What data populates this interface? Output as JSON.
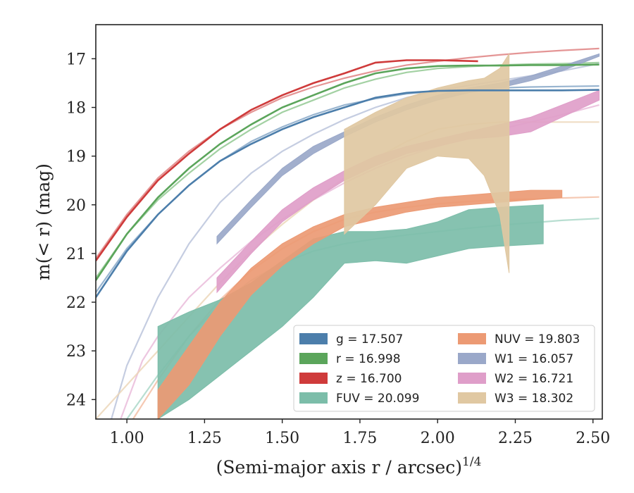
{
  "chart_data": {
    "type": "line",
    "xlabel": "(Semi-major axis r / arcsec)",
    "xlabel_exponent": "1/4",
    "ylabel": "m(< r) (mag)",
    "xlim": [
      0.9,
      2.53
    ],
    "ylim": [
      24.4,
      16.3
    ],
    "y_inverted": true,
    "grid": false,
    "x_ticks": [
      1.0,
      1.25,
      1.5,
      1.75,
      2.0,
      2.25,
      2.5
    ],
    "x_tick_labels": [
      "1.00",
      "1.25",
      "1.50",
      "1.75",
      "2.00",
      "2.25",
      "2.50"
    ],
    "y_ticks": [
      17,
      18,
      19,
      20,
      21,
      22,
      23,
      24
    ],
    "y_tick_labels": [
      "17",
      "18",
      "19",
      "20",
      "21",
      "22",
      "23",
      "24"
    ],
    "legend_position": "lower-right",
    "legend": [
      {
        "label": "g = 17.507",
        "color": "#4c7eab"
      },
      {
        "label": "r = 16.998",
        "color": "#5ba55b"
      },
      {
        "label": "z = 16.700",
        "color": "#cf3b3b"
      },
      {
        "label": "FUV = 20.099",
        "color": "#7cbda9"
      },
      {
        "label": "NUV = 19.803",
        "color": "#ec9a74"
      },
      {
        "label": "W1 = 16.057",
        "color": "#9aa8c9"
      },
      {
        "label": "W2 = 16.721",
        "color": "#df9ec9"
      },
      {
        "label": "W3 = 18.302",
        "color": "#e0c8a2"
      }
    ],
    "series": [
      {
        "name": "g = 17.507",
        "kind": "line",
        "color": "#4c7eab",
        "x": [
          0.9,
          1.0,
          1.1,
          1.2,
          1.3,
          1.4,
          1.5,
          1.6,
          1.7,
          1.8,
          1.9,
          2.0,
          2.1,
          2.2,
          2.3,
          2.4,
          2.52
        ],
        "y": [
          21.9,
          20.95,
          20.2,
          19.6,
          19.1,
          18.75,
          18.45,
          18.2,
          18.0,
          17.8,
          17.7,
          17.66,
          17.65,
          17.65,
          17.65,
          17.65,
          17.64
        ]
      },
      {
        "name": "r = 16.998",
        "kind": "line",
        "color": "#5ba55b",
        "x": [
          0.9,
          1.0,
          1.1,
          1.2,
          1.3,
          1.4,
          1.5,
          1.6,
          1.7,
          1.8,
          1.9,
          2.0,
          2.1,
          2.2,
          2.3,
          2.4,
          2.52
        ],
        "y": [
          21.55,
          20.6,
          19.85,
          19.25,
          18.75,
          18.35,
          18.0,
          17.75,
          17.5,
          17.3,
          17.2,
          17.15,
          17.14,
          17.14,
          17.13,
          17.13,
          17.12
        ]
      },
      {
        "name": "z = 16.700",
        "kind": "line",
        "color": "#cf3b3b",
        "x": [
          0.9,
          1.0,
          1.1,
          1.2,
          1.3,
          1.4,
          1.5,
          1.6,
          1.7,
          1.8,
          1.9,
          2.0,
          2.13
        ],
        "y": [
          21.15,
          20.25,
          19.5,
          18.95,
          18.45,
          18.05,
          17.75,
          17.5,
          17.3,
          17.08,
          17.03,
          17.03,
          17.05
        ]
      },
      {
        "name": "FUV = 20.099",
        "kind": "band",
        "color": "#7cbda9",
        "x": [
          1.1,
          1.2,
          1.3,
          1.4,
          1.5,
          1.6,
          1.7,
          1.8,
          1.9,
          2.0,
          2.1,
          2.2,
          2.34
        ],
        "y_low": [
          24.4,
          24.0,
          23.5,
          23.0,
          22.5,
          21.9,
          21.2,
          21.15,
          21.2,
          21.05,
          20.9,
          20.85,
          20.8
        ],
        "y_high": [
          22.5,
          22.2,
          21.95,
          21.6,
          21.15,
          20.7,
          20.55,
          20.55,
          20.5,
          20.35,
          20.1,
          20.05,
          20.0
        ]
      },
      {
        "name": "NUV = 19.803",
        "kind": "band",
        "color": "#ec9a74",
        "x": [
          1.1,
          1.2,
          1.3,
          1.4,
          1.5,
          1.6,
          1.7,
          1.8,
          1.9,
          2.0,
          2.1,
          2.2,
          2.3,
          2.4
        ],
        "y_low": [
          24.4,
          23.7,
          22.7,
          21.85,
          21.25,
          20.8,
          20.45,
          20.3,
          20.15,
          20.05,
          20.0,
          19.95,
          19.9,
          19.85
        ],
        "y_high": [
          23.8,
          22.9,
          22.0,
          21.3,
          20.8,
          20.45,
          20.2,
          20.05,
          19.95,
          19.85,
          19.8,
          19.75,
          19.7,
          19.7
        ]
      },
      {
        "name": "W1 = 16.057",
        "kind": "band",
        "color": "#9aa8c9",
        "x": [
          1.29,
          1.4,
          1.5,
          1.6,
          1.7,
          1.8,
          1.9,
          2.0,
          2.1,
          2.2,
          2.3,
          2.4,
          2.52
        ],
        "y_low": [
          20.8,
          20.05,
          19.4,
          18.95,
          18.6,
          18.3,
          18.05,
          17.85,
          17.7,
          17.6,
          17.45,
          17.25,
          16.95
        ],
        "y_high": [
          20.65,
          19.9,
          19.25,
          18.8,
          18.5,
          18.2,
          17.95,
          17.75,
          17.6,
          17.5,
          17.35,
          17.15,
          16.9
        ]
      },
      {
        "name": "W2 = 16.721",
        "kind": "band",
        "color": "#df9ec9",
        "x": [
          1.29,
          1.4,
          1.5,
          1.6,
          1.7,
          1.8,
          1.9,
          2.0,
          2.1,
          2.2,
          2.3,
          2.4,
          2.52
        ],
        "y_low": [
          21.8,
          21.0,
          20.35,
          19.9,
          19.5,
          19.2,
          18.95,
          18.8,
          18.65,
          18.6,
          18.5,
          18.2,
          17.85
        ],
        "y_high": [
          21.5,
          20.75,
          20.1,
          19.65,
          19.3,
          19.0,
          18.8,
          18.65,
          18.5,
          18.35,
          18.2,
          17.95,
          17.65
        ]
      },
      {
        "name": "W3 = 18.302",
        "kind": "band",
        "color": "#e0c8a2",
        "x": [
          1.7,
          1.8,
          1.9,
          2.0,
          2.1,
          2.15,
          2.2,
          2.23
        ],
        "y_low": [
          20.6,
          20.0,
          19.25,
          19.0,
          19.05,
          19.4,
          20.2,
          21.4
        ],
        "y_high": [
          18.45,
          18.1,
          17.8,
          17.6,
          17.45,
          17.4,
          17.2,
          16.9
        ]
      }
    ],
    "model_curves": [
      {
        "color": "#dd7b7b",
        "x": [
          0.9,
          1.0,
          1.1,
          1.2,
          1.3,
          1.4,
          1.5,
          1.6,
          1.7,
          1.8,
          1.9,
          2.0,
          2.1,
          2.2,
          2.3,
          2.4,
          2.52
        ],
        "y": [
          21.1,
          20.2,
          19.45,
          18.9,
          18.45,
          18.1,
          17.8,
          17.58,
          17.4,
          17.25,
          17.13,
          17.05,
          16.98,
          16.92,
          16.87,
          16.83,
          16.79
        ]
      },
      {
        "color": "#8cc58c",
        "x": [
          0.9,
          1.0,
          1.1,
          1.2,
          1.3,
          1.4,
          1.5,
          1.6,
          1.7,
          1.8,
          1.9,
          2.0,
          2.1,
          2.2,
          2.3,
          2.4,
          2.52
        ],
        "y": [
          21.5,
          20.6,
          19.9,
          19.35,
          18.85,
          18.45,
          18.1,
          17.85,
          17.6,
          17.42,
          17.28,
          17.2,
          17.16,
          17.13,
          17.11,
          17.1,
          17.08
        ]
      },
      {
        "color": "#7fa3c4",
        "x": [
          0.9,
          1.0,
          1.1,
          1.2,
          1.3,
          1.4,
          1.5,
          1.6,
          1.7,
          1.8,
          1.9,
          2.0,
          2.1,
          2.2,
          2.3,
          2.4,
          2.52
        ],
        "y": [
          21.8,
          20.9,
          20.2,
          19.6,
          19.1,
          18.7,
          18.4,
          18.15,
          17.95,
          17.82,
          17.72,
          17.66,
          17.62,
          17.6,
          17.58,
          17.57,
          17.56
        ]
      },
      {
        "color": "#b7c1d9",
        "x": [
          0.95,
          1.0,
          1.1,
          1.2,
          1.3,
          1.4,
          1.5,
          1.6,
          1.7,
          1.8,
          1.9,
          2.0,
          2.1,
          2.2,
          2.3,
          2.4,
          2.52
        ],
        "y": [
          24.4,
          23.3,
          21.9,
          20.8,
          19.95,
          19.35,
          18.9,
          18.55,
          18.25,
          18.0,
          17.8,
          17.65,
          17.55,
          17.45,
          17.35,
          17.25,
          17.1
        ]
      },
      {
        "color": "#e8b8d8",
        "x": [
          0.98,
          1.05,
          1.1,
          1.2,
          1.3,
          1.4,
          1.5,
          1.6,
          1.7,
          1.8,
          1.9,
          2.0,
          2.1,
          2.2,
          2.3,
          2.4,
          2.52
        ],
        "y": [
          24.4,
          23.2,
          22.7,
          21.9,
          21.3,
          20.75,
          20.3,
          19.9,
          19.55,
          19.25,
          19.0,
          18.8,
          18.6,
          18.45,
          18.3,
          18.15,
          17.95
        ]
      },
      {
        "color": "#ebd5b5",
        "x": [
          0.9,
          1.0,
          1.1,
          1.2,
          1.3,
          1.4,
          1.5,
          1.6,
          1.7,
          1.8,
          1.9,
          2.0,
          2.1,
          2.2,
          2.3,
          2.4,
          2.52
        ],
        "y": [
          24.4,
          23.7,
          23.0,
          22.3,
          21.6,
          20.95,
          20.4,
          19.9,
          19.45,
          19.05,
          18.7,
          18.45,
          18.35,
          18.3,
          18.3,
          18.3,
          18.3
        ]
      },
      {
        "color": "#f3bba0",
        "x": [
          1.02,
          1.1,
          1.2,
          1.3,
          1.4,
          1.5,
          1.6,
          1.7,
          1.8,
          1.9,
          2.0,
          2.1,
          2.2,
          2.3,
          2.4,
          2.52
        ],
        "y": [
          24.4,
          23.6,
          22.7,
          21.95,
          21.35,
          20.9,
          20.55,
          20.3,
          20.15,
          20.05,
          19.98,
          19.93,
          19.9,
          19.88,
          19.86,
          19.84
        ]
      },
      {
        "color": "#a6d6c6",
        "x": [
          1.0,
          1.1,
          1.2,
          1.3,
          1.4,
          1.5,
          1.6,
          1.7,
          1.8,
          1.9,
          2.0,
          2.1,
          2.2,
          2.3,
          2.4,
          2.52
        ],
        "y": [
          24.4,
          23.5,
          22.7,
          22.05,
          21.55,
          21.2,
          20.95,
          20.8,
          20.7,
          20.62,
          20.55,
          20.48,
          20.42,
          20.37,
          20.32,
          20.28
        ]
      }
    ]
  }
}
